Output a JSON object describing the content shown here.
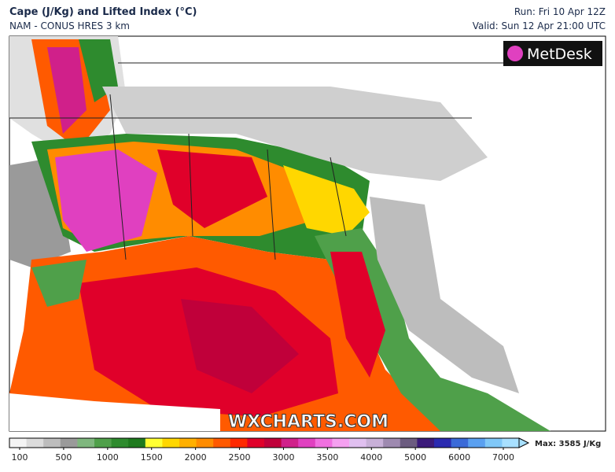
{
  "header": {
    "title": "Cape (J/Kg) and Lifted Index (°C)",
    "model": "NAM - CONUS HRES 3 km",
    "run": "Run: Fri 10 Apr 12Z",
    "valid": "Valid: Sun 12 Apr 21:00 UTC"
  },
  "logo": "MetDesk",
  "watermark": "WXCHARTS.COM",
  "colorbar": {
    "ticks": [
      100,
      500,
      1000,
      1500,
      2000,
      2500,
      3000,
      3500,
      4000,
      5000,
      6000,
      7000
    ],
    "colors": [
      "#f4f4f4",
      "#dcdcdc",
      "#bdbdbd",
      "#9a9a9a",
      "#7fb77e",
      "#4fa04a",
      "#2e8b2e",
      "#1e7a1e",
      "#ffff33",
      "#ffd700",
      "#ffb000",
      "#ff8c00",
      "#ff5a00",
      "#ff2a00",
      "#e0002a",
      "#c0003a",
      "#d0208a",
      "#e040c0",
      "#f070e0",
      "#f5a0f0",
      "#e0c0f0",
      "#c8b0d8",
      "#9e8ab0",
      "#6c5c80",
      "#3b1a7a",
      "#2a2ab0",
      "#3a6ad8",
      "#5aa0f0",
      "#80c8f8",
      "#a8e0ff"
    ],
    "max": "Max: 3585 J/Kg"
  }
}
